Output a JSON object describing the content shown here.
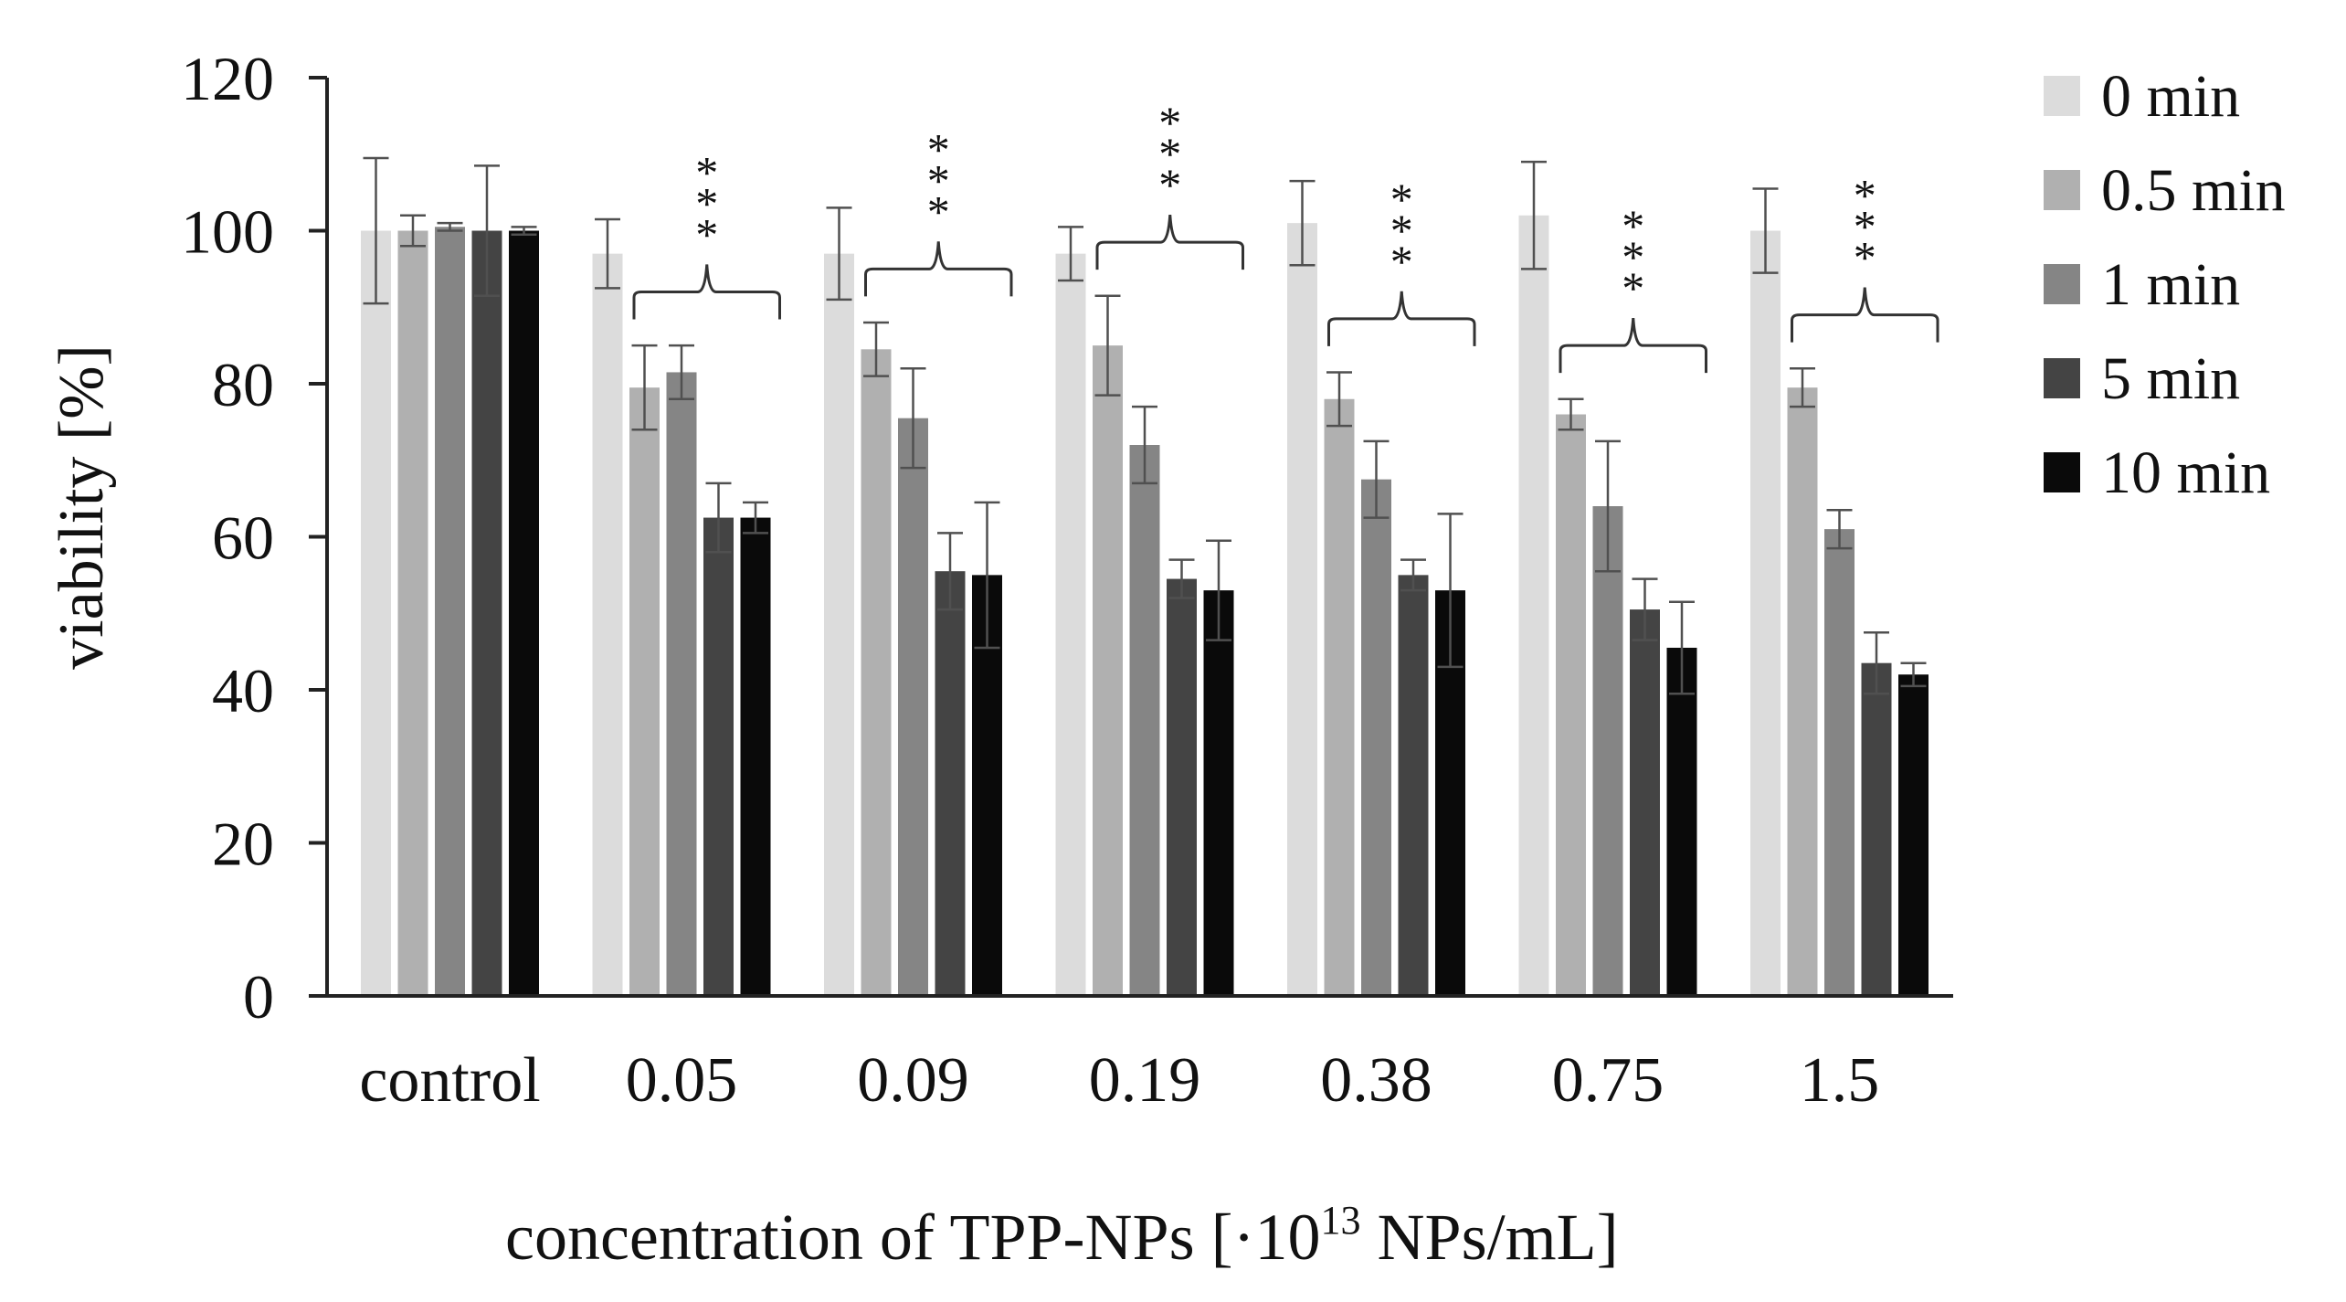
{
  "chart_data": {
    "type": "bar",
    "title": "",
    "xlabel": "concentration of TPP-NPs [·10",
    "xlabel_exp": "13",
    "xlabel_unit": " NPs/mL]",
    "ylabel": "viability [%]",
    "ylim": [
      0,
      120
    ],
    "yticks": [
      0,
      20,
      40,
      60,
      80,
      100,
      120
    ],
    "grid": false,
    "legend_position": "right",
    "categories": [
      "control",
      "0.05",
      "0.09",
      "0.19",
      "0.38",
      "0.75",
      "1.5"
    ],
    "series": [
      {
        "name": "0 min",
        "color": "#dcdcdc",
        "values": [
          100,
          97,
          97,
          97,
          101,
          102,
          100
        ],
        "errors": [
          9.5,
          4.5,
          6,
          3.5,
          5.5,
          7,
          5.5
        ]
      },
      {
        "name": "0.5 min",
        "color": "#b0b0b0",
        "values": [
          100,
          79.5,
          84.5,
          85,
          78,
          76,
          79.5
        ],
        "errors": [
          2,
          5.5,
          3.5,
          6.5,
          3.5,
          2,
          2.5
        ]
      },
      {
        "name": "1 min",
        "color": "#858585",
        "values": [
          100.5,
          81.5,
          75.5,
          72,
          67.5,
          64,
          61
        ],
        "errors": [
          0.5,
          3.5,
          6.5,
          5,
          5,
          8.5,
          2.5
        ]
      },
      {
        "name": "5 min",
        "color": "#444444",
        "values": [
          100,
          62.5,
          55.5,
          54.5,
          55,
          50.5,
          43.5
        ],
        "errors": [
          8.5,
          4.5,
          5,
          2.5,
          2,
          4,
          4
        ]
      },
      {
        "name": "10 min",
        "color": "#0a0a0a",
        "values": [
          100,
          62.5,
          55,
          53,
          53,
          45.5,
          42
        ],
        "errors": [
          0.5,
          2,
          9.5,
          6.5,
          10,
          6,
          1.5
        ]
      }
    ],
    "annotations": [
      {
        "text": "***",
        "group": "0.05"
      },
      {
        "text": "***",
        "group": "0.09"
      },
      {
        "text": "***",
        "group": "0.19"
      },
      {
        "text": "***",
        "group": "0.38"
      },
      {
        "text": "***",
        "group": "0.75"
      },
      {
        "text": "***",
        "group": "1.5"
      }
    ]
  }
}
